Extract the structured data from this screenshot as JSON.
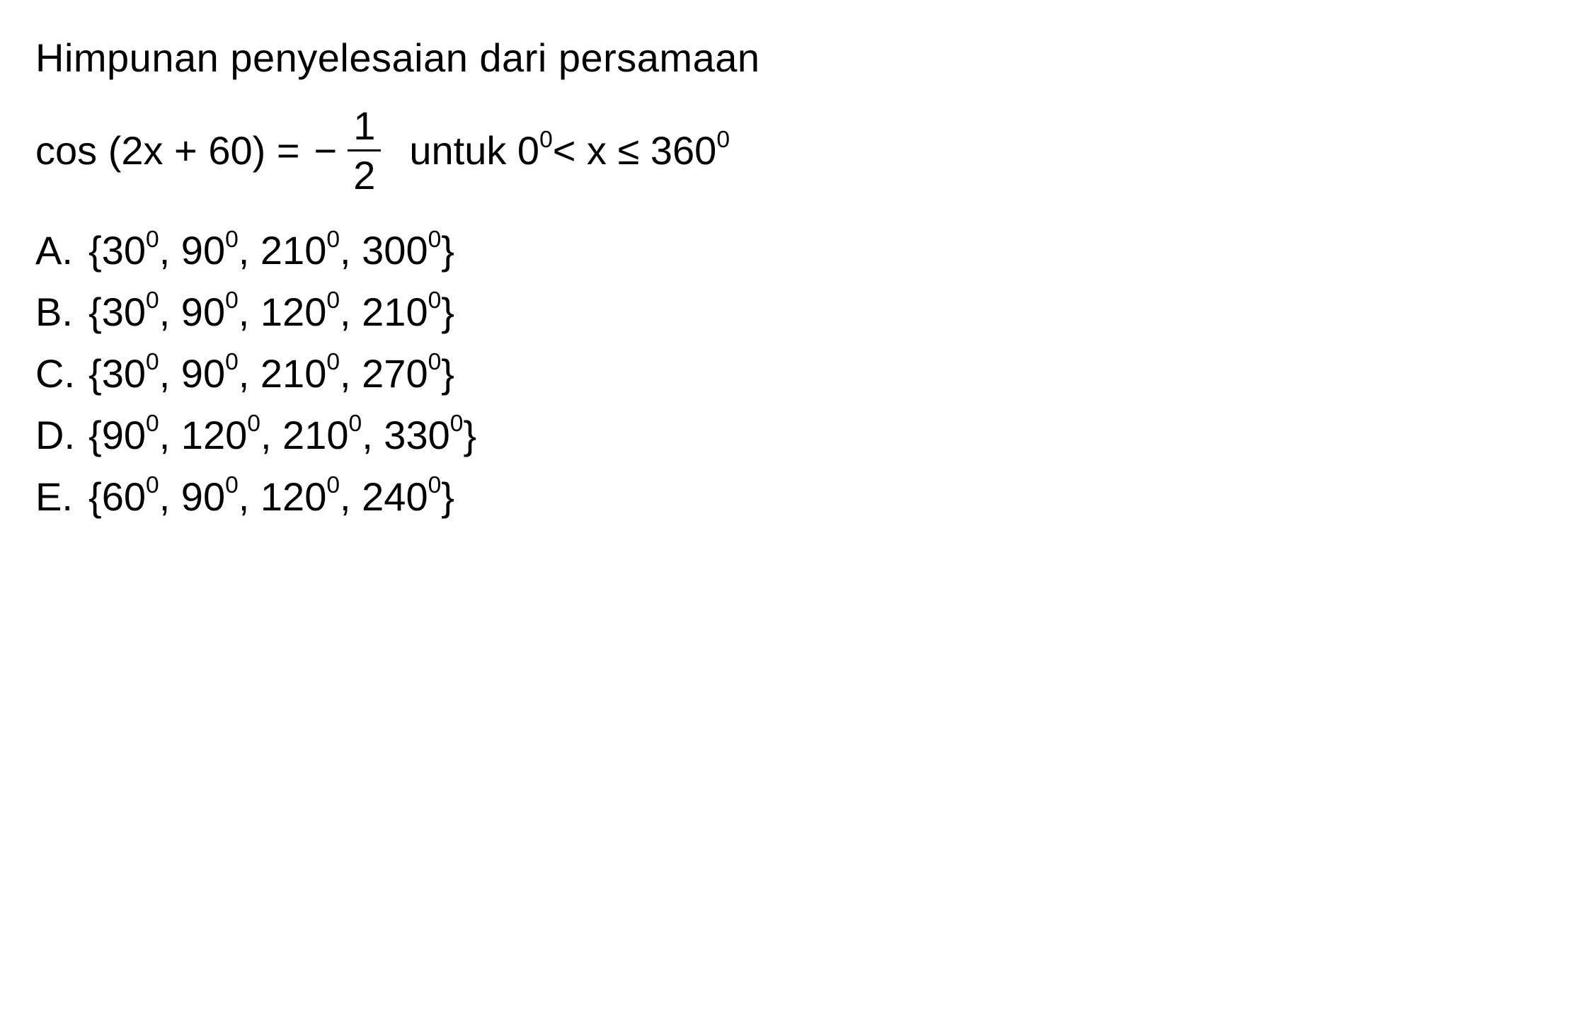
{
  "question": {
    "line1": "Himpunan penyelesaian  dari  persamaan",
    "cos_part": "cos (2x + 60) = ",
    "minus": "−",
    "frac_num": "1",
    "frac_den": "2",
    "untuk": "untuk 0",
    "deg1": "0",
    "lt": "< x ≤ 360",
    "deg2": "0"
  },
  "options": {
    "a": {
      "letter": "A.",
      "open": "{30",
      "s1": "0",
      "p1": ", 90",
      "s2": "0",
      "p2": ", 210",
      "s3": "0",
      "p3": ", 300",
      "s4": "0",
      "close": "}"
    },
    "b": {
      "letter": "B.",
      "open": "{30",
      "s1": "0",
      "p1": ", 90",
      "s2": "0",
      "p2": ", 120",
      "s3": "0",
      "p3": ", 210",
      "s4": "0",
      "close": "}"
    },
    "c": {
      "letter": "C.",
      "open": "{30",
      "s1": "0",
      "p1": ", 90",
      "s2": "0",
      "p2": ", 210",
      "s3": "0",
      "p3": ", 270",
      "s4": "0",
      "close": "}"
    },
    "d": {
      "letter": "D.",
      "open": "{90",
      "s1": "0",
      "p1": ", 120",
      "s2": "0",
      "p2": ", 210",
      "s3": "0",
      "p3": ", 330",
      "s4": "0",
      "close": "}"
    },
    "e": {
      "letter": "E.",
      "open": "{60",
      "s1": "0",
      "p1": ", 90",
      "s2": "0",
      "p2": ", 120",
      "s3": "0",
      "p3": ", 240",
      "s4": "0",
      "close": "}"
    }
  },
  "styling": {
    "background_color": "#ffffff",
    "text_color": "#000000",
    "font_size_pt": 42,
    "font_family": "Arial"
  }
}
